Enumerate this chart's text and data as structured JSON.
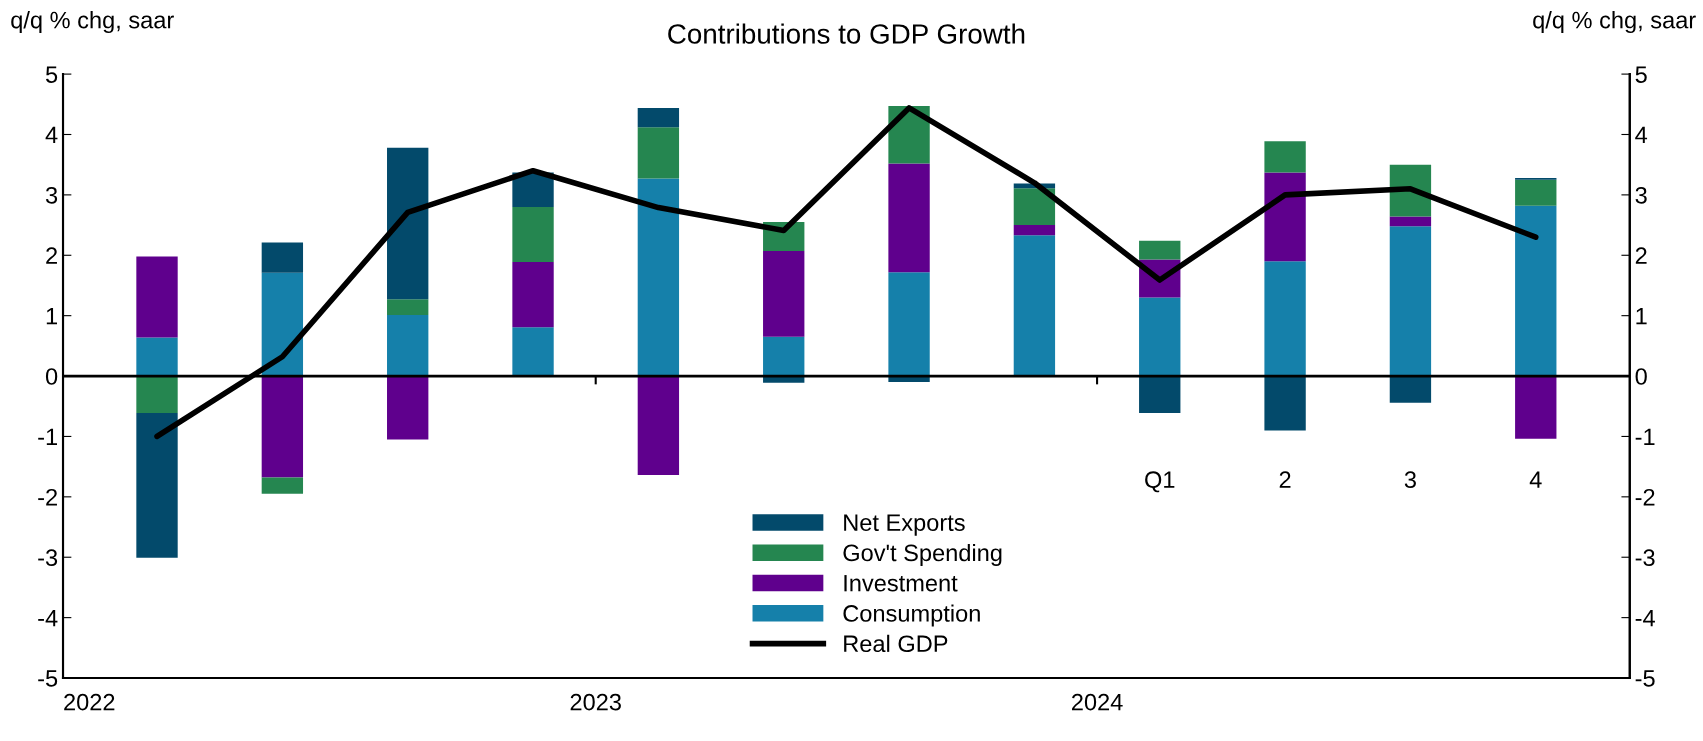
{
  "chart_data": {
    "type": "bar",
    "stacked": true,
    "title": "Contributions to GDP Growth",
    "ylabel": "q/q % chg, saar",
    "y2label": "q/q % chg, saar",
    "categories": [
      null,
      null,
      null,
      null,
      null,
      null,
      null,
      null,
      "Q1",
      "2",
      "3",
      "4"
    ],
    "series": [
      {
        "name": "Consumption",
        "color": "#1580aa",
        "values": [
          0.64,
          1.71,
          1.01,
          0.81,
          3.27,
          0.65,
          1.72,
          2.33,
          1.3,
          1.9,
          2.48,
          2.82
        ]
      },
      {
        "name": "Investment",
        "color": "#5f008d",
        "values": [
          1.34,
          -1.68,
          -1.05,
          1.08,
          -1.64,
          1.42,
          1.8,
          0.17,
          0.63,
          1.47,
          0.16,
          -1.04
        ]
      },
      {
        "name": "Gov't Spending",
        "color": "#258650",
        "values": [
          -0.61,
          -0.27,
          0.26,
          0.91,
          0.85,
          0.48,
          0.95,
          0.61,
          0.31,
          0.52,
          0.86,
          0.43
        ]
      },
      {
        "name": "Net Exports",
        "color": "#034a6b",
        "values": [
          -2.4,
          0.5,
          2.51,
          0.57,
          0.32,
          -0.11,
          -0.1,
          0.08,
          -0.61,
          -0.9,
          -0.44,
          0.03
        ]
      },
      {
        "name": "Real GDP",
        "type": "line",
        "color": "#000000",
        "values": [
          -1.0,
          0.32,
          2.71,
          3.4,
          2.79,
          2.41,
          4.44,
          3.2,
          1.59,
          3.0,
          3.1,
          2.3
        ]
      }
    ],
    "ylim": [
      -5,
      5
    ],
    "yticks": [
      -5,
      -4,
      -3,
      -2,
      -1,
      0,
      1,
      2,
      3,
      4,
      5
    ],
    "y2lim": [
      -5,
      5
    ],
    "y2ticks": [
      -5,
      -4,
      -3,
      -2,
      -1,
      0,
      1,
      2,
      3,
      4,
      5
    ],
    "ref_lines": [
      {
        "axis": "y",
        "value": 0,
        "color": "#000000"
      }
    ],
    "annotations": [
      "2022",
      "2023",
      "2024"
    ],
    "legend": "bottom",
    "grid": false
  }
}
